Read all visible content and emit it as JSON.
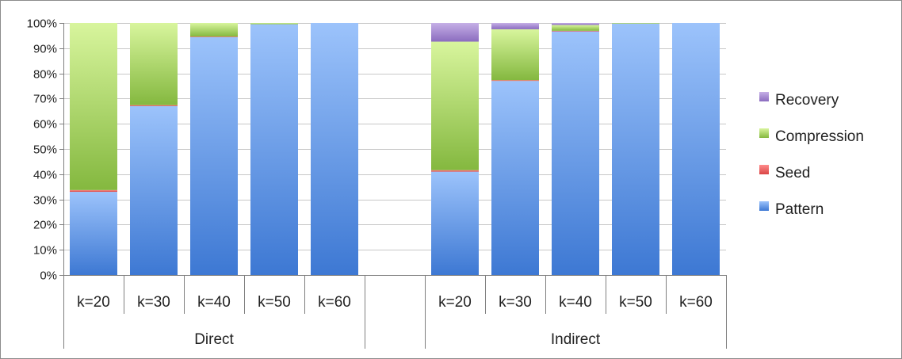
{
  "chart_data": {
    "type": "bar",
    "stacked": true,
    "percent": true,
    "title": "",
    "xlabel": "",
    "ylabel": "",
    "ylim": [
      0,
      100
    ],
    "y_ticks": [
      "0%",
      "10%",
      "20%",
      "30%",
      "40%",
      "50%",
      "60%",
      "70%",
      "80%",
      "90%",
      "100%"
    ],
    "grid": true,
    "legend_position": "right",
    "groups": [
      {
        "label": "Direct",
        "categories": [
          "k=20",
          "k=30",
          "k=40",
          "k=50",
          "k=60"
        ]
      },
      {
        "label": "Indirect",
        "categories": [
          "k=20",
          "k=30",
          "k=40",
          "k=50",
          "k=60"
        ]
      }
    ],
    "series": [
      {
        "name": "Pattern",
        "color": "#4a86d8",
        "values": [
          33,
          67,
          94.5,
          99.5,
          100,
          41,
          77,
          96.8,
          99.8,
          100
        ]
      },
      {
        "name": "Seed",
        "color": "#e8595a",
        "values": [
          0.7,
          0.4,
          0.1,
          0,
          0,
          0.6,
          0.3,
          0.1,
          0,
          0
        ]
      },
      {
        "name": "Compression",
        "color": "#8fc24c",
        "values": [
          66.3,
          32.6,
          5.4,
          0.5,
          0,
          51,
          20.2,
          2.3,
          0.2,
          0
        ]
      },
      {
        "name": "Recovery",
        "color": "#9a7ec7",
        "values": [
          0,
          0,
          0,
          0,
          0,
          7.4,
          2.5,
          0.8,
          0,
          0
        ]
      }
    ],
    "legend_order": [
      "Recovery",
      "Compression",
      "Seed",
      "Pattern"
    ]
  }
}
